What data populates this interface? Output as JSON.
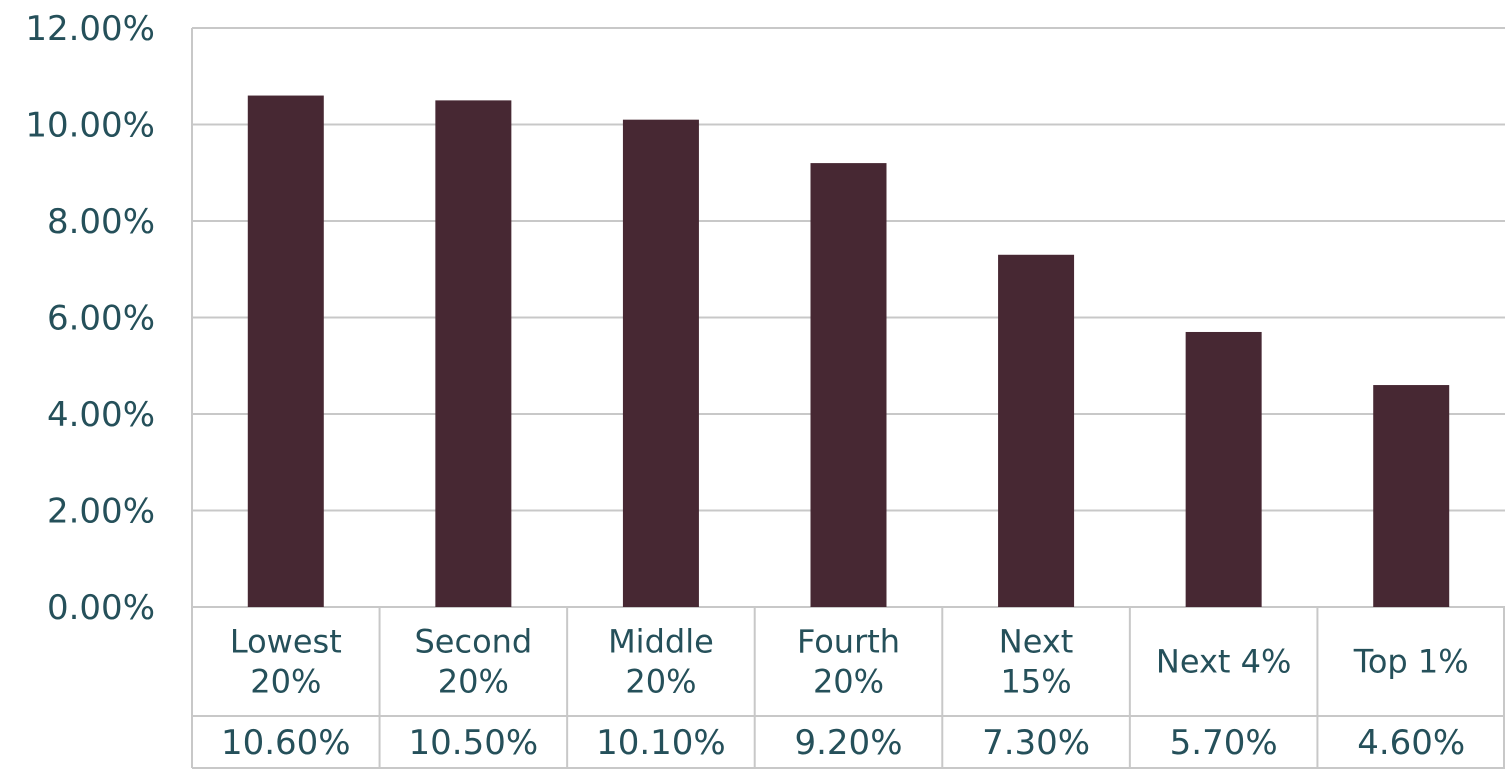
{
  "chart_data": {
    "type": "bar",
    "categories": [
      [
        "Lowest",
        "20%"
      ],
      [
        "Second",
        "20%"
      ],
      [
        "Middle",
        "20%"
      ],
      [
        "Fourth",
        "20%"
      ],
      [
        "Next",
        "15%"
      ],
      [
        "Next 4%"
      ],
      [
        "Top 1%"
      ]
    ],
    "values": [
      10.6,
      10.5,
      10.1,
      9.2,
      7.3,
      5.7,
      4.6
    ],
    "value_labels": [
      "10.60%",
      "10.50%",
      "10.10%",
      "9.20%",
      "7.30%",
      "5.70%",
      "4.60%"
    ],
    "y_ticks": [
      "0.00%",
      "2.00%",
      "4.00%",
      "6.00%",
      "8.00%",
      "10.00%",
      "12.00%"
    ],
    "ylim": [
      0,
      12
    ],
    "grid": true,
    "legend": "none",
    "data_table": true,
    "title": "",
    "xlabel": "",
    "ylabel": "",
    "colors": {
      "bar": "#472833",
      "grid": "#c8c8c8",
      "text": "#25505a"
    }
  }
}
